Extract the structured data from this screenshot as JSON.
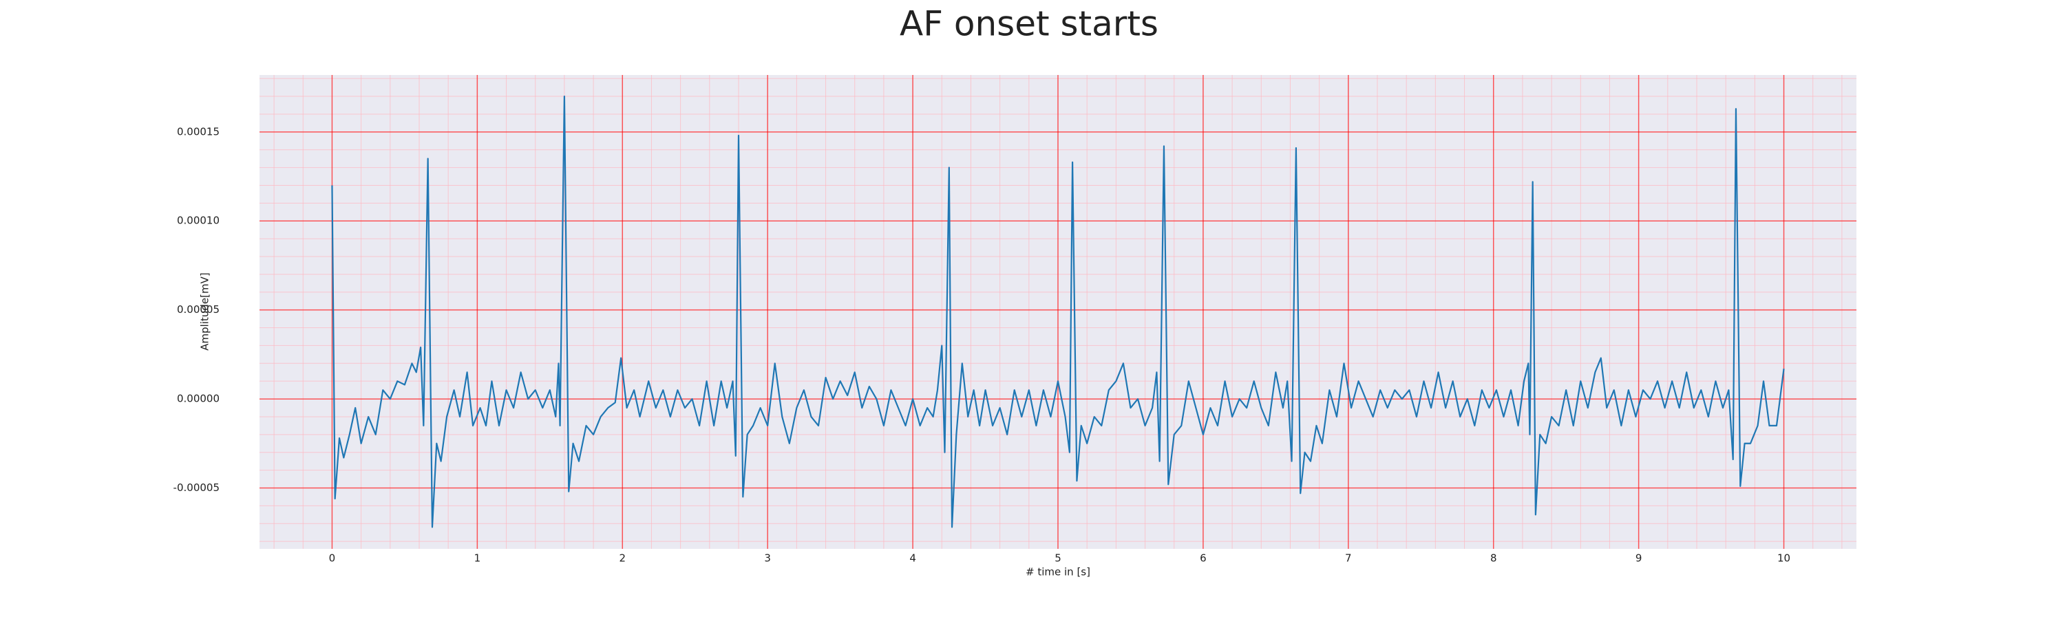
{
  "chart_data": {
    "type": "line",
    "title": "AF onset starts",
    "xlabel": "# time in [s]",
    "ylabel": "Amplitude[mV]",
    "color": "#1f77b4",
    "grid": true,
    "minor_grid": true,
    "xlim": [
      -0.5,
      10.5
    ],
    "xticks": [
      0,
      1,
      2,
      3,
      4,
      5,
      6,
      7,
      8,
      9,
      10
    ],
    "ylim": [
      -8.42e-05,
      0.000182
    ],
    "yticks": [
      -5e-05,
      {
        "value": 0,
        "label": "0.00000"
      },
      5e-05,
      {
        "value": 0.0001,
        "label": "0.00010"
      },
      0.00015
    ],
    "x": [
      0,
      0.02,
      0.05,
      0.08,
      0.12,
      0.16,
      0.2,
      0.25,
      0.3,
      0.35,
      0.4,
      0.45,
      0.5,
      0.55,
      0.58,
      0.61,
      0.63,
      0.66,
      0.69,
      0.72,
      0.75,
      0.79,
      0.84,
      0.88,
      0.93,
      0.97,
      1.02,
      1.06,
      1.1,
      1.15,
      1.2,
      1.25,
      1.3,
      1.35,
      1.4,
      1.45,
      1.5,
      1.54,
      1.56,
      1.57,
      1.6,
      1.63,
      1.66,
      1.7,
      1.75,
      1.8,
      1.85,
      1.9,
      1.95,
      1.99,
      2.03,
      2.08,
      2.12,
      2.18,
      2.23,
      2.28,
      2.33,
      2.38,
      2.43,
      2.48,
      2.53,
      2.58,
      2.63,
      2.68,
      2.72,
      2.76,
      2.78,
      2.8,
      2.83,
      2.86,
      2.9,
      2.95,
      3.0,
      3.05,
      3.1,
      3.15,
      3.2,
      3.25,
      3.3,
      3.35,
      3.4,
      3.45,
      3.5,
      3.55,
      3.6,
      3.65,
      3.7,
      3.75,
      3.8,
      3.85,
      3.9,
      3.95,
      4.0,
      4.05,
      4.1,
      4.14,
      4.17,
      4.2,
      4.22,
      4.25,
      4.27,
      4.3,
      4.34,
      4.38,
      4.42,
      4.46,
      4.5,
      4.55,
      4.6,
      4.65,
      4.7,
      4.75,
      4.8,
      4.85,
      4.9,
      4.95,
      5.0,
      5.05,
      5.08,
      5.1,
      5.13,
      5.16,
      5.2,
      5.25,
      5.3,
      5.35,
      5.4,
      5.45,
      5.5,
      5.55,
      5.6,
      5.65,
      5.68,
      5.7,
      5.73,
      5.76,
      5.8,
      5.85,
      5.9,
      5.95,
      6.0,
      6.05,
      6.1,
      6.15,
      6.2,
      6.25,
      6.3,
      6.35,
      6.4,
      6.45,
      6.5,
      6.55,
      6.58,
      6.61,
      6.64,
      6.67,
      6.7,
      6.74,
      6.78,
      6.82,
      6.87,
      6.92,
      6.97,
      7.02,
      7.07,
      7.12,
      7.17,
      7.22,
      7.27,
      7.32,
      7.37,
      7.42,
      7.47,
      7.52,
      7.57,
      7.62,
      7.67,
      7.72,
      7.77,
      7.82,
      7.87,
      7.92,
      7.97,
      8.02,
      8.07,
      8.12,
      8.17,
      8.21,
      8.24,
      8.25,
      8.27,
      8.29,
      8.32,
      8.36,
      8.4,
      8.45,
      8.5,
      8.55,
      8.6,
      8.65,
      8.7,
      8.74,
      8.78,
      8.83,
      8.88,
      8.93,
      8.98,
      9.03,
      9.08,
      9.13,
      9.18,
      9.23,
      9.28,
      9.33,
      9.38,
      9.43,
      9.48,
      9.53,
      9.58,
      9.62,
      9.65,
      9.67,
      9.7,
      9.73,
      9.77,
      9.82,
      9.86,
      9.9,
      9.95,
      10.0
    ],
    "values": [
      0.00012,
      -5.6e-05,
      -2.2e-05,
      -3.3e-05,
      -2e-05,
      -5e-06,
      -2.5e-05,
      -1e-05,
      -2e-05,
      5e-06,
      0,
      1e-05,
      8e-06,
      2e-05,
      1.5e-05,
      2.9e-05,
      -1.5e-05,
      0.000135,
      -7.2e-05,
      -2.5e-05,
      -3.5e-05,
      -1e-05,
      5e-06,
      -1e-05,
      1.5e-05,
      -1.5e-05,
      -5e-06,
      -1.5e-05,
      1e-05,
      -1.5e-05,
      5e-06,
      -5e-06,
      1.5e-05,
      0,
      5e-06,
      -5e-06,
      5e-06,
      -1e-05,
      2e-05,
      -1.5e-05,
      0.00017,
      -5.2e-05,
      -2.5e-05,
      -3.5e-05,
      -1.5e-05,
      -2e-05,
      -1e-05,
      -5e-06,
      -2e-06,
      2.3e-05,
      -5e-06,
      5e-06,
      -1e-05,
      1e-05,
      -5e-06,
      5e-06,
      -1e-05,
      5e-06,
      -5e-06,
      0,
      -1.5e-05,
      1e-05,
      -1.5e-05,
      1e-05,
      -5e-06,
      1e-05,
      -3.2e-05,
      0.000148,
      -5.5e-05,
      -2e-05,
      -1.5e-05,
      -5e-06,
      -1.5e-05,
      2e-05,
      -1e-05,
      -2.5e-05,
      -5e-06,
      5e-06,
      -1e-05,
      -1.5e-05,
      1.2e-05,
      0,
      1e-05,
      2e-06,
      1.5e-05,
      -5e-06,
      7e-06,
      0,
      -1.5e-05,
      5e-06,
      -5e-06,
      -1.5e-05,
      0,
      -1.5e-05,
      -5e-06,
      -1e-05,
      5e-06,
      3e-05,
      -3e-05,
      0.00013,
      -7.2e-05,
      -2e-05,
      2e-05,
      -1e-05,
      5e-06,
      -1.5e-05,
      5e-06,
      -1.5e-05,
      -5e-06,
      -2e-05,
      5e-06,
      -1e-05,
      5e-06,
      -1.5e-05,
      5e-06,
      -1e-05,
      1e-05,
      -1e-05,
      -3e-05,
      0.000133,
      -4.6e-05,
      -1.5e-05,
      -2.5e-05,
      -1e-05,
      -1.5e-05,
      5e-06,
      1e-05,
      2e-05,
      -5e-06,
      0,
      -1.5e-05,
      -5e-06,
      1.5e-05,
      -3.5e-05,
      0.000142,
      -4.8e-05,
      -2e-05,
      -1.5e-05,
      1e-05,
      -5e-06,
      -2e-05,
      -5e-06,
      -1.5e-05,
      1e-05,
      -1e-05,
      0,
      -5e-06,
      1e-05,
      -5e-06,
      -1.5e-05,
      1.5e-05,
      -5e-06,
      1e-05,
      -3.5e-05,
      0.000141,
      -5.3e-05,
      -3e-05,
      -3.5e-05,
      -1.5e-05,
      -2.5e-05,
      5e-06,
      -1e-05,
      2e-05,
      -5e-06,
      1e-05,
      0,
      -1e-05,
      5e-06,
      -5e-06,
      5e-06,
      0,
      5e-06,
      -1e-05,
      1e-05,
      -5e-06,
      1.5e-05,
      -5e-06,
      1e-05,
      -1e-05,
      0,
      -1.5e-05,
      5e-06,
      -5e-06,
      5e-06,
      -1e-05,
      5e-06,
      -1.5e-05,
      1e-05,
      2e-05,
      -2e-05,
      0.000122,
      -6.5e-05,
      -2e-05,
      -2.5e-05,
      -1e-05,
      -1.5e-05,
      5e-06,
      -1.5e-05,
      1e-05,
      -5e-06,
      1.5e-05,
      2.3e-05,
      -5e-06,
      5e-06,
      -1.5e-05,
      5e-06,
      -1e-05,
      5e-06,
      0,
      1e-05,
      -5e-06,
      1e-05,
      -5e-06,
      1.5e-05,
      -5e-06,
      5e-06,
      -1e-05,
      1e-05,
      -5e-06,
      5e-06,
      -3.4e-05,
      0.000163,
      -4.9e-05,
      -2.5e-05,
      -2.5e-05,
      -1.5e-05,
      1e-05,
      -1.5e-05,
      -1.5e-05,
      1.7e-05
    ]
  }
}
